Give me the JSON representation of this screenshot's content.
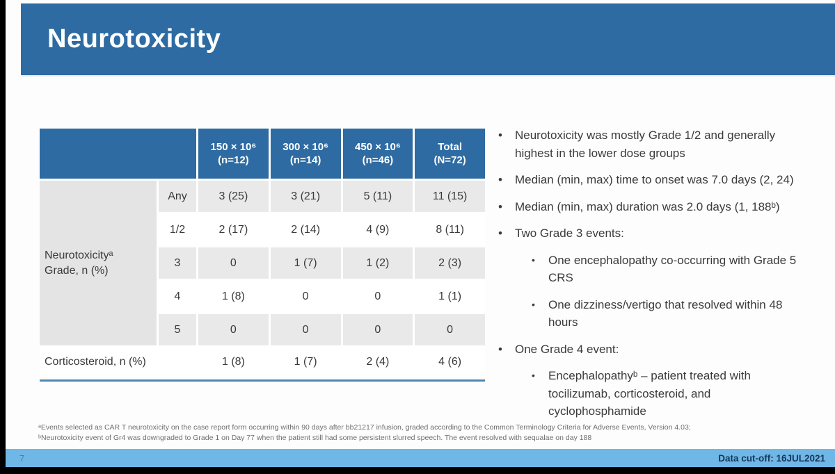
{
  "slide": {
    "title": "Neurotoxicity",
    "page_number": "7",
    "data_cutoff": "Data cut-off: 16JUL2021"
  },
  "table": {
    "header": {
      "columns": [
        {
          "line1": "150 × 10⁶",
          "line2": "(n=12)"
        },
        {
          "line1": "300 × 10⁶",
          "line2": "(n=14)"
        },
        {
          "line1": "450 × 10⁶",
          "line2": "(n=46)"
        },
        {
          "line1": "Total",
          "line2": "(N=72)"
        }
      ]
    },
    "group_label": {
      "line1": "Neurotoxicityᵃ",
      "line2": "Grade, n (%)"
    },
    "grade_rows": [
      {
        "grade": "Any",
        "values": [
          "3 (25)",
          "3 (21)",
          "5 (11)",
          "11 (15)"
        ]
      },
      {
        "grade": "1/2",
        "values": [
          "2 (17)",
          "2 (14)",
          "4 (9)",
          "8 (11)"
        ]
      },
      {
        "grade": "3",
        "values": [
          "0",
          "1 (7)",
          "1 (2)",
          "2 (3)"
        ]
      },
      {
        "grade": "4",
        "values": [
          "1 (8)",
          "0",
          "0",
          "1 (1)"
        ]
      },
      {
        "grade": "5",
        "values": [
          "0",
          "0",
          "0",
          "0"
        ]
      }
    ],
    "footer_row": {
      "label": "Corticosteroid, n (%)",
      "values": [
        "1 (8)",
        "1 (7)",
        "2 (4)",
        "4 (6)"
      ]
    }
  },
  "bullets": [
    {
      "level": 1,
      "text": "Neurotoxicity was mostly Grade 1/2 and generally highest in the lower dose groups"
    },
    {
      "level": 1,
      "text": "Median (min, max) time to onset was 7.0 days (2, 24)"
    },
    {
      "level": 1,
      "text": "Median (min, max) duration was 2.0 days (1, 188ᵇ)"
    },
    {
      "level": 1,
      "text": "Two Grade 3 events:"
    },
    {
      "level": 2,
      "text": "One encephalopathy co-occurring with Grade 5 CRS"
    },
    {
      "level": 2,
      "text": "One dizziness/vertigo that resolved within 48 hours"
    },
    {
      "level": 1,
      "text": "One Grade 4 event:"
    },
    {
      "level": 2,
      "text": "Encephalopathyᵇ – patient treated with tocilizumab, corticosteroid, and cyclophosphamide"
    }
  ],
  "footnotes": [
    "ᵃEvents selected as CAR T neurotoxicity on the case report form occurring within 90 days after bb21217 infusion, graded according to the Common Terminology Criteria for Adverse Events, Version 4.03;",
    "ᵇNeurotoxicity event of Gr4 was downgraded to Grade 1 on Day 77 when the patient still had some persistent slurred speech. The event resolved with sequalae on day 188"
  ],
  "colors": {
    "banner_blue": "#2e6ba3",
    "table_header_blue": "#2e6ba3",
    "row_gray": "#e9e9e9",
    "group_label_gray": "#e4e4e4",
    "underline_blue": "#4d87b0",
    "footer_bar_blue": "#6fb7e6",
    "footer_text_navy": "#16365c",
    "body_text": "#3b3b3b"
  }
}
